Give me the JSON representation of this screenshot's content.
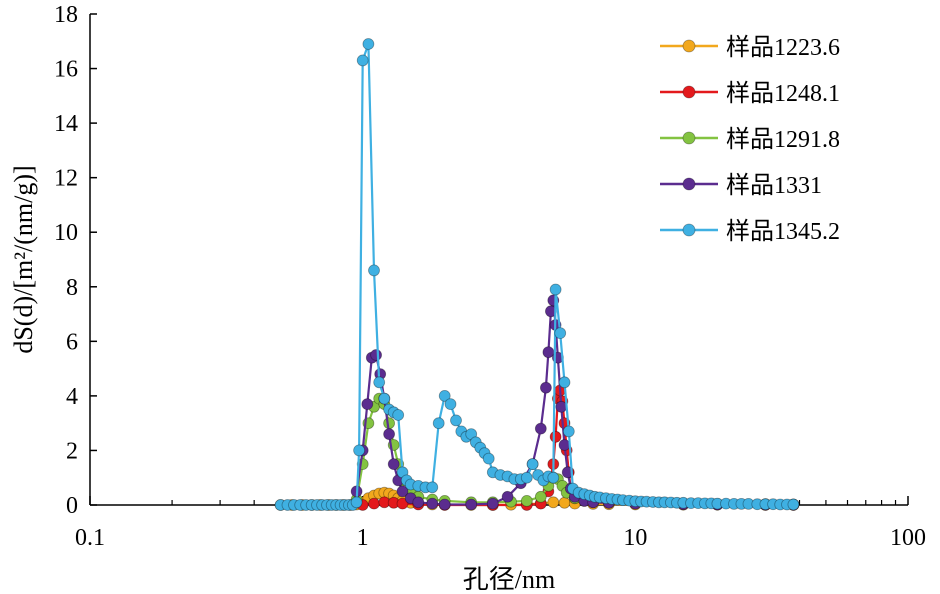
{
  "chart_data": {
    "type": "line",
    "x_scale": "log",
    "xlabel": "孔径/nm",
    "ylabel": "dS(d)/[m²/(nm/g)]",
    "xlim": [
      0.1,
      100
    ],
    "ylim": [
      0,
      18
    ],
    "x_ticks": [
      "0.1",
      "1",
      "10",
      "100"
    ],
    "y_ticks": [
      "0",
      "2",
      "4",
      "6",
      "8",
      "10",
      "12",
      "14",
      "16",
      "18"
    ],
    "grid": false,
    "legend_position": "top-right",
    "series": [
      {
        "name": "样品1223.6",
        "color": "#f2a81d",
        "points": [
          [
            0.5,
            0
          ],
          [
            0.55,
            0
          ],
          [
            0.6,
            0
          ],
          [
            0.65,
            0
          ],
          [
            0.7,
            0
          ],
          [
            0.75,
            0
          ],
          [
            0.8,
            0
          ],
          [
            0.85,
            0
          ],
          [
            0.9,
            0
          ],
          [
            0.95,
            0.02
          ],
          [
            1.0,
            0.1
          ],
          [
            1.05,
            0.25
          ],
          [
            1.1,
            0.35
          ],
          [
            1.15,
            0.42
          ],
          [
            1.2,
            0.45
          ],
          [
            1.25,
            0.42
          ],
          [
            1.3,
            0.35
          ],
          [
            1.35,
            0.25
          ],
          [
            1.4,
            0.15
          ],
          [
            1.5,
            0.08
          ],
          [
            1.6,
            0.04
          ],
          [
            1.8,
            0.02
          ],
          [
            2.0,
            0.01
          ],
          [
            2.5,
            0
          ],
          [
            3.0,
            0
          ],
          [
            3.5,
            0.01
          ],
          [
            4.0,
            0.03
          ],
          [
            4.5,
            0.06
          ],
          [
            5.0,
            0.1
          ],
          [
            5.5,
            0.08
          ],
          [
            6.0,
            0.05
          ],
          [
            7.0,
            0.04
          ],
          [
            8.0,
            0.03
          ],
          [
            10.0,
            0.02
          ],
          [
            15.0,
            0.01
          ],
          [
            20.0,
            0.01
          ],
          [
            30.0,
            0
          ],
          [
            38.0,
            0
          ]
        ]
      },
      {
        "name": "样品1248.1",
        "color": "#e3191c",
        "points": [
          [
            1.0,
            0
          ],
          [
            1.1,
            0.05
          ],
          [
            1.2,
            0.1
          ],
          [
            1.3,
            0.08
          ],
          [
            1.4,
            0.05
          ],
          [
            1.6,
            0.02
          ],
          [
            2.0,
            0
          ],
          [
            3.0,
            0
          ],
          [
            4.0,
            0
          ],
          [
            4.5,
            0.05
          ],
          [
            4.8,
            0.5
          ],
          [
            5.0,
            1.5
          ],
          [
            5.1,
            2.5
          ],
          [
            5.2,
            3.9
          ],
          [
            5.3,
            4.2
          ],
          [
            5.4,
            3.8
          ],
          [
            5.5,
            3.0
          ],
          [
            5.6,
            2.0
          ],
          [
            5.7,
            1.2
          ],
          [
            5.8,
            0.6
          ],
          [
            6.0,
            0.25
          ],
          [
            6.5,
            0.15
          ],
          [
            7.0,
            0.1
          ],
          [
            8.0,
            0.08
          ],
          [
            10.0,
            0.05
          ],
          [
            15.0,
            0.03
          ],
          [
            20.0,
            0.02
          ],
          [
            30.0,
            0.01
          ],
          [
            38.0,
            0.01
          ]
        ]
      },
      {
        "name": "样品1291.8",
        "color": "#83c341",
        "points": [
          [
            0.95,
            0.2
          ],
          [
            1.0,
            1.5
          ],
          [
            1.05,
            3.0
          ],
          [
            1.1,
            3.6
          ],
          [
            1.15,
            3.9
          ],
          [
            1.2,
            3.7
          ],
          [
            1.25,
            3.0
          ],
          [
            1.3,
            2.2
          ],
          [
            1.35,
            1.5
          ],
          [
            1.4,
            0.9
          ],
          [
            1.5,
            0.5
          ],
          [
            1.6,
            0.3
          ],
          [
            1.8,
            0.2
          ],
          [
            2.0,
            0.15
          ],
          [
            2.5,
            0.1
          ],
          [
            3.0,
            0.1
          ],
          [
            3.5,
            0.12
          ],
          [
            4.0,
            0.15
          ],
          [
            4.5,
            0.3
          ],
          [
            4.8,
            0.7
          ],
          [
            5.0,
            1.0
          ],
          [
            5.2,
            0.95
          ],
          [
            5.4,
            0.7
          ],
          [
            5.6,
            0.45
          ],
          [
            6.0,
            0.25
          ],
          [
            7.0,
            0.15
          ],
          [
            8.0,
            0.1
          ],
          [
            10.0,
            0.08
          ],
          [
            15.0,
            0.05
          ],
          [
            20.0,
            0.04
          ],
          [
            30.0,
            0.03
          ],
          [
            38.0,
            0.02
          ]
        ]
      },
      {
        "name": "样品1331",
        "color": "#5b2c8f",
        "points": [
          [
            0.95,
            0.5
          ],
          [
            1.0,
            2.0
          ],
          [
            1.04,
            3.7
          ],
          [
            1.08,
            5.4
          ],
          [
            1.12,
            5.5
          ],
          [
            1.16,
            4.8
          ],
          [
            1.2,
            3.9
          ],
          [
            1.25,
            2.6
          ],
          [
            1.3,
            1.5
          ],
          [
            1.35,
            0.9
          ],
          [
            1.4,
            0.5
          ],
          [
            1.5,
            0.25
          ],
          [
            1.6,
            0.1
          ],
          [
            1.8,
            0.05
          ],
          [
            2.0,
            0.02
          ],
          [
            2.5,
            0.02
          ],
          [
            3.0,
            0.05
          ],
          [
            3.4,
            0.3
          ],
          [
            3.8,
            0.8
          ],
          [
            4.2,
            1.5
          ],
          [
            4.5,
            2.8
          ],
          [
            4.7,
            4.3
          ],
          [
            4.8,
            5.6
          ],
          [
            4.9,
            7.1
          ],
          [
            5.0,
            7.5
          ],
          [
            5.1,
            6.6
          ],
          [
            5.2,
            5.4
          ],
          [
            5.35,
            3.6
          ],
          [
            5.5,
            2.2
          ],
          [
            5.65,
            1.2
          ],
          [
            5.8,
            0.6
          ],
          [
            6.0,
            0.3
          ],
          [
            6.5,
            0.15
          ],
          [
            7.0,
            0.1
          ],
          [
            8.0,
            0.08
          ],
          [
            10.0,
            0.05
          ],
          [
            15.0,
            0.03
          ],
          [
            20.0,
            0.02
          ],
          [
            30.0,
            0.01
          ],
          [
            38.0,
            0.01
          ]
        ]
      },
      {
        "name": "样品1345.2",
        "color": "#3fb0e2",
        "points": [
          [
            0.5,
            0
          ],
          [
            0.53,
            0
          ],
          [
            0.56,
            0
          ],
          [
            0.59,
            0
          ],
          [
            0.62,
            0
          ],
          [
            0.65,
            0
          ],
          [
            0.68,
            0
          ],
          [
            0.71,
            0
          ],
          [
            0.74,
            0
          ],
          [
            0.77,
            0
          ],
          [
            0.8,
            0
          ],
          [
            0.83,
            0
          ],
          [
            0.86,
            0
          ],
          [
            0.89,
            0
          ],
          [
            0.92,
            0
          ],
          [
            0.95,
            0.1
          ],
          [
            0.97,
            2.0
          ],
          [
            1.0,
            16.3
          ],
          [
            1.05,
            16.9
          ],
          [
            1.1,
            8.6
          ],
          [
            1.15,
            4.5
          ],
          [
            1.2,
            3.9
          ],
          [
            1.25,
            3.5
          ],
          [
            1.3,
            3.4
          ],
          [
            1.35,
            3.3
          ],
          [
            1.4,
            1.2
          ],
          [
            1.45,
            0.9
          ],
          [
            1.5,
            0.75
          ],
          [
            1.6,
            0.7
          ],
          [
            1.7,
            0.65
          ],
          [
            1.8,
            0.65
          ],
          [
            1.9,
            3.0
          ],
          [
            2.0,
            4.0
          ],
          [
            2.1,
            3.7
          ],
          [
            2.2,
            3.1
          ],
          [
            2.3,
            2.7
          ],
          [
            2.4,
            2.5
          ],
          [
            2.5,
            2.6
          ],
          [
            2.6,
            2.3
          ],
          [
            2.7,
            2.1
          ],
          [
            2.8,
            1.9
          ],
          [
            2.9,
            1.7
          ],
          [
            3.0,
            1.2
          ],
          [
            3.2,
            1.1
          ],
          [
            3.4,
            1.05
          ],
          [
            3.6,
            0.95
          ],
          [
            3.8,
            0.95
          ],
          [
            4.0,
            1.0
          ],
          [
            4.2,
            1.5
          ],
          [
            4.4,
            1.1
          ],
          [
            4.6,
            0.9
          ],
          [
            4.8,
            1.05
          ],
          [
            5.0,
            1.0
          ],
          [
            5.1,
            7.9
          ],
          [
            5.3,
            6.3
          ],
          [
            5.5,
            4.5
          ],
          [
            5.7,
            2.7
          ],
          [
            5.9,
            0.6
          ],
          [
            6.2,
            0.45
          ],
          [
            6.5,
            0.4
          ],
          [
            6.8,
            0.35
          ],
          [
            7.1,
            0.3
          ],
          [
            7.4,
            0.28
          ],
          [
            7.8,
            0.25
          ],
          [
            8.2,
            0.22
          ],
          [
            8.6,
            0.2
          ],
          [
            9.0,
            0.18
          ],
          [
            9.5,
            0.16
          ],
          [
            10.0,
            0.14
          ],
          [
            10.5,
            0.13
          ],
          [
            11.0,
            0.12
          ],
          [
            11.6,
            0.11
          ],
          [
            12.2,
            0.1
          ],
          [
            12.8,
            0.1
          ],
          [
            13.5,
            0.09
          ],
          [
            14.2,
            0.08
          ],
          [
            15.0,
            0.08
          ],
          [
            16.0,
            0.07
          ],
          [
            17.0,
            0.07
          ],
          [
            18.0,
            0.06
          ],
          [
            19.0,
            0.06
          ],
          [
            20.0,
            0.05
          ],
          [
            21.5,
            0.05
          ],
          [
            23.0,
            0.04
          ],
          [
            24.5,
            0.04
          ],
          [
            26.0,
            0.04
          ],
          [
            28.0,
            0.03
          ],
          [
            30.0,
            0.03
          ],
          [
            32.0,
            0.03
          ],
          [
            34.0,
            0.02
          ],
          [
            36.0,
            0.02
          ],
          [
            38.0,
            0.02
          ]
        ]
      }
    ]
  }
}
